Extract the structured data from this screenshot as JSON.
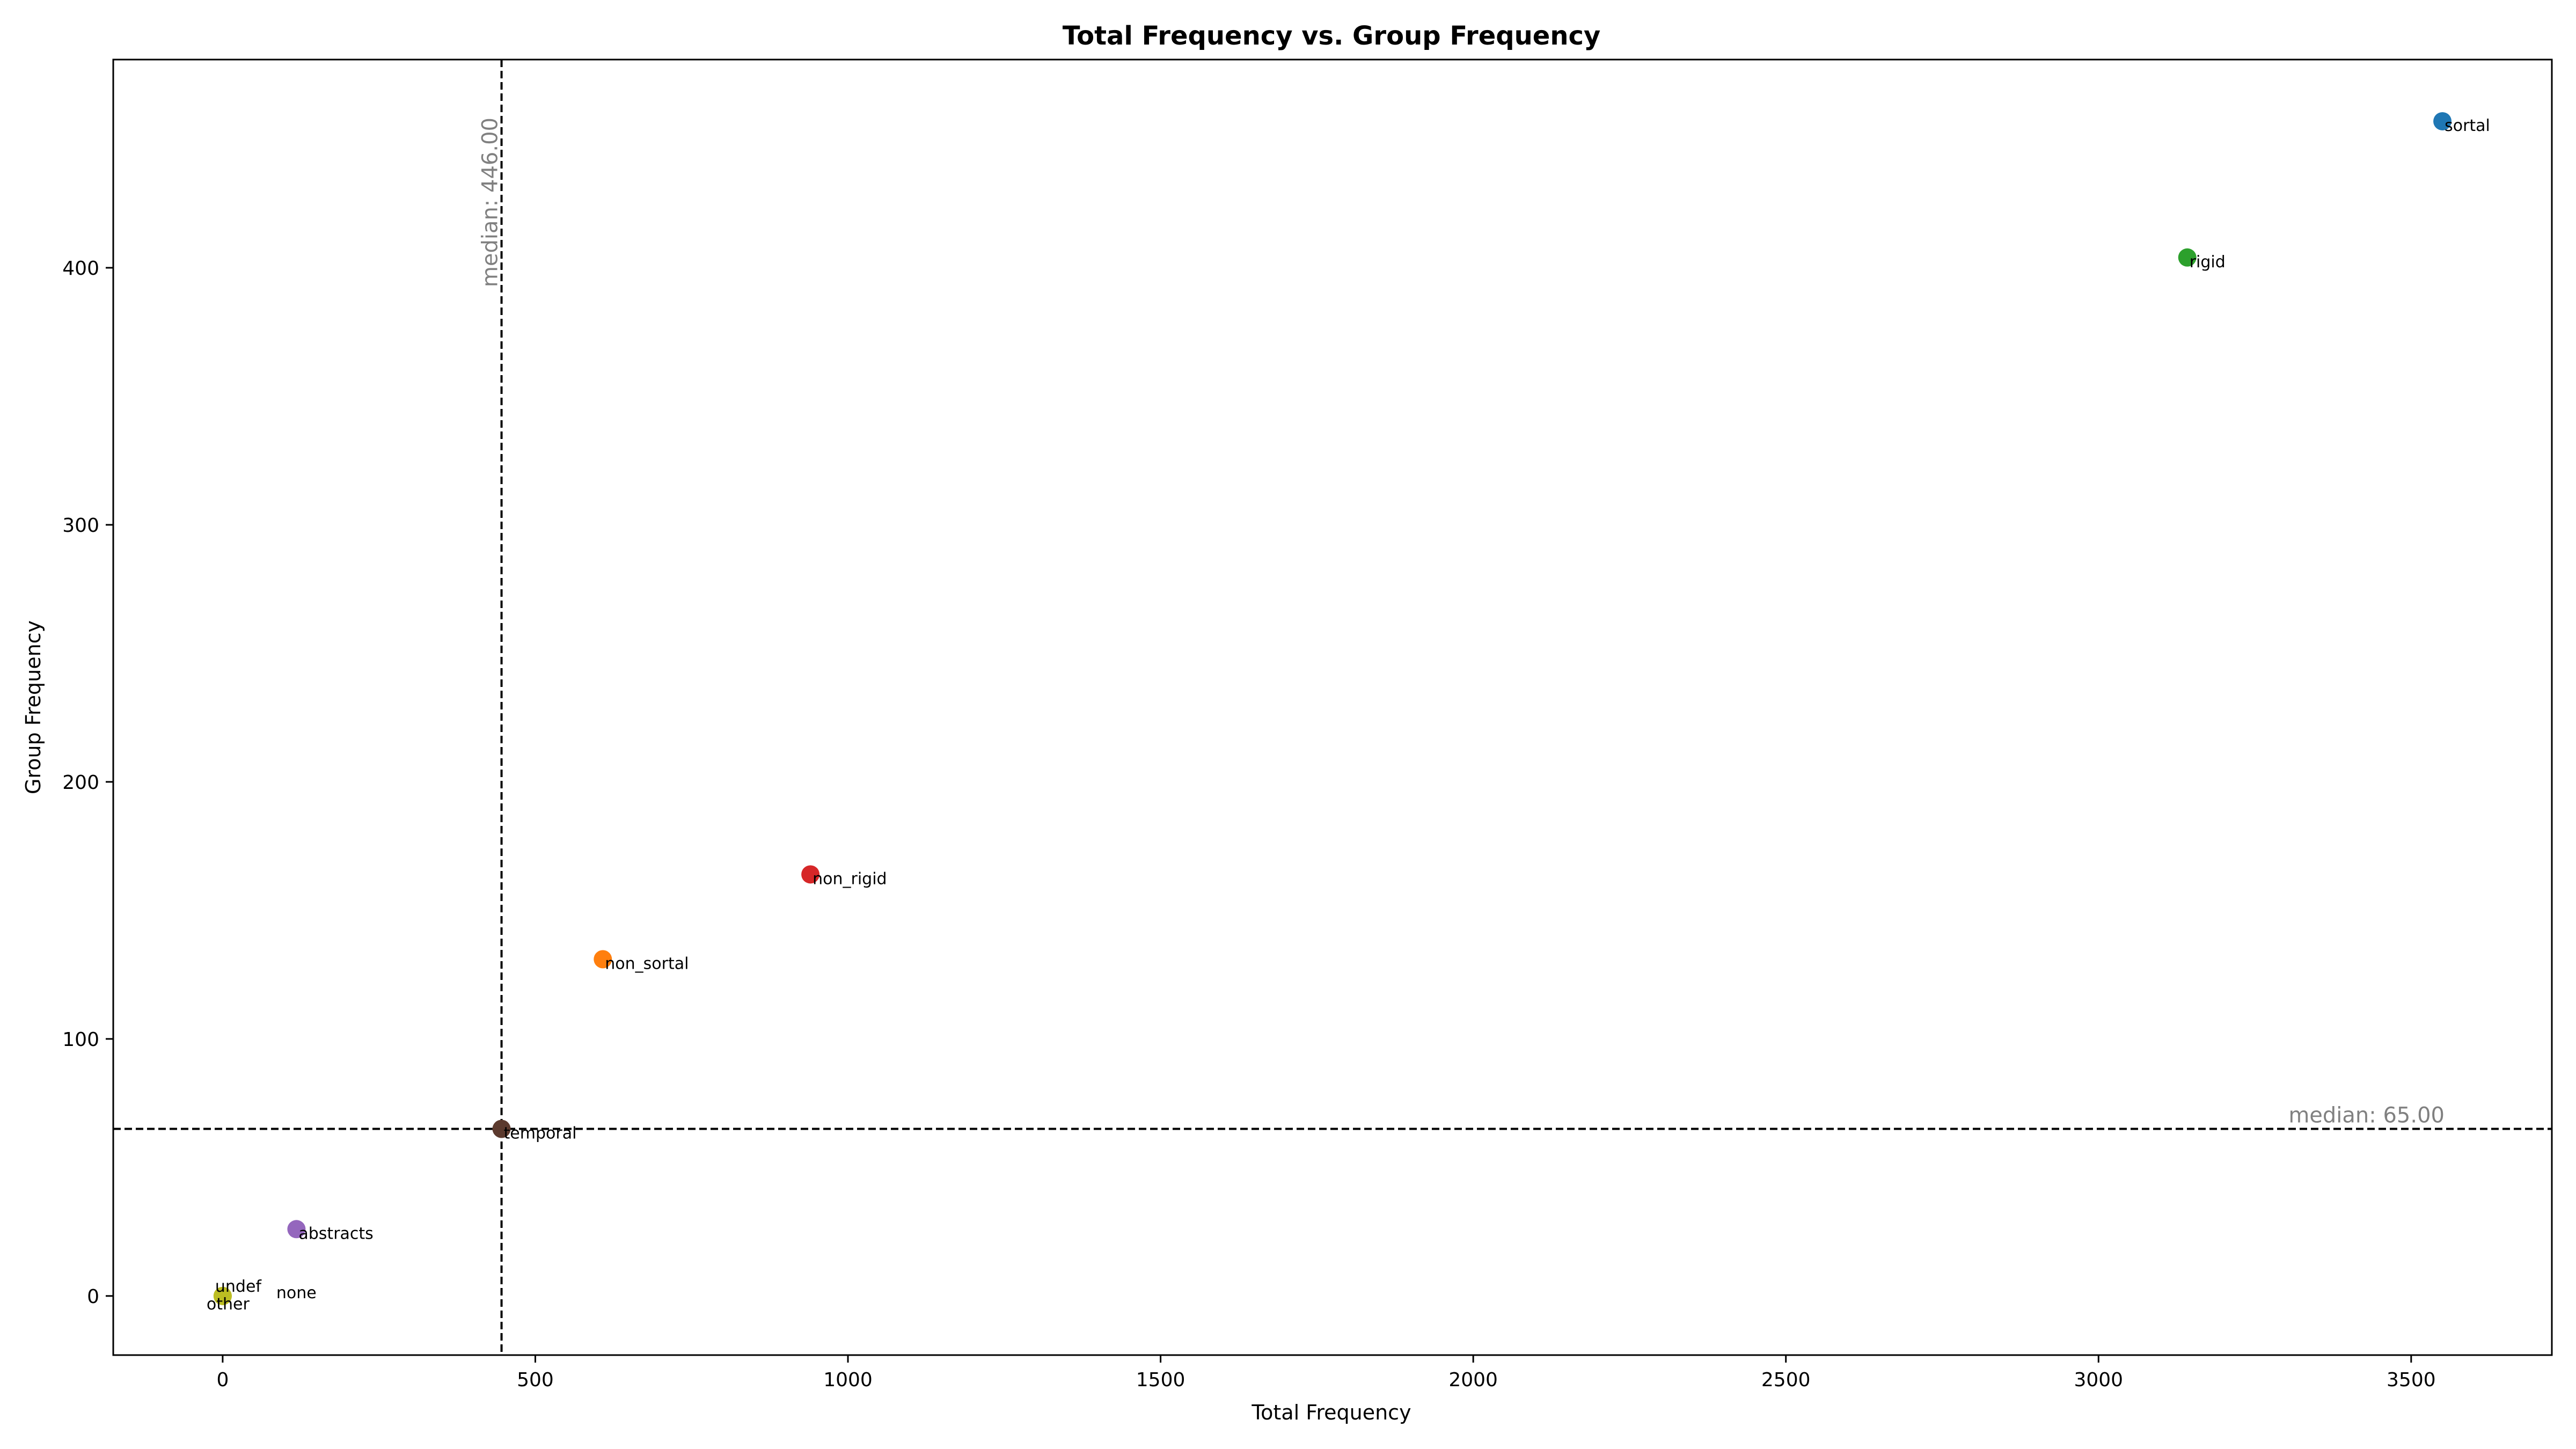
{
  "chart_data": {
    "type": "scatter",
    "title": "Total Frequency vs. Group Frequency",
    "xlabel": "Total Frequency",
    "ylabel": "Group Frequency",
    "xlim": [
      -175,
      3725
    ],
    "ylim": [
      -23,
      481
    ],
    "xticks": [
      0,
      500,
      1000,
      1500,
      2000,
      2500,
      3000,
      3500
    ],
    "yticks": [
      0,
      100,
      200,
      300,
      400
    ],
    "grid": false,
    "points": [
      {
        "label": "sortal",
        "x": 3550,
        "y": 457,
        "color": "#1f77b4",
        "label_color": "#000000"
      },
      {
        "label": "rigid",
        "x": 3142,
        "y": 404,
        "color": "#2ca02c",
        "label_color": "#000000"
      },
      {
        "label": "non_rigid",
        "x": 940,
        "y": 164,
        "color": "#d62728",
        "label_color": "#000000"
      },
      {
        "label": "non_sortal",
        "x": 608,
        "y": 131,
        "color": "#ff7f0e",
        "label_color": "#000000"
      },
      {
        "label": "temporal",
        "x": 446,
        "y": 65,
        "color": "#5c3a2e",
        "label_color": "#000000"
      },
      {
        "label": "abstracts",
        "x": 118,
        "y": 26,
        "color": "#9467bd",
        "label_color": "#000000"
      },
      {
        "label": "undef",
        "x": 0,
        "y": 0,
        "color": "#bcbd22",
        "label_color": "#000000"
      },
      {
        "label": "other",
        "x": 0,
        "y": 0,
        "color": "#bcbd22",
        "label_color": "#ff0000"
      },
      {
        "label": "none",
        "x": 0,
        "y": 0,
        "color": "#bcbd22",
        "label_color": "#0000cc"
      }
    ],
    "median_x": {
      "value": 446,
      "text": "median: 446.00"
    },
    "median_y": {
      "value": 65,
      "text": "median: 65.00"
    }
  }
}
